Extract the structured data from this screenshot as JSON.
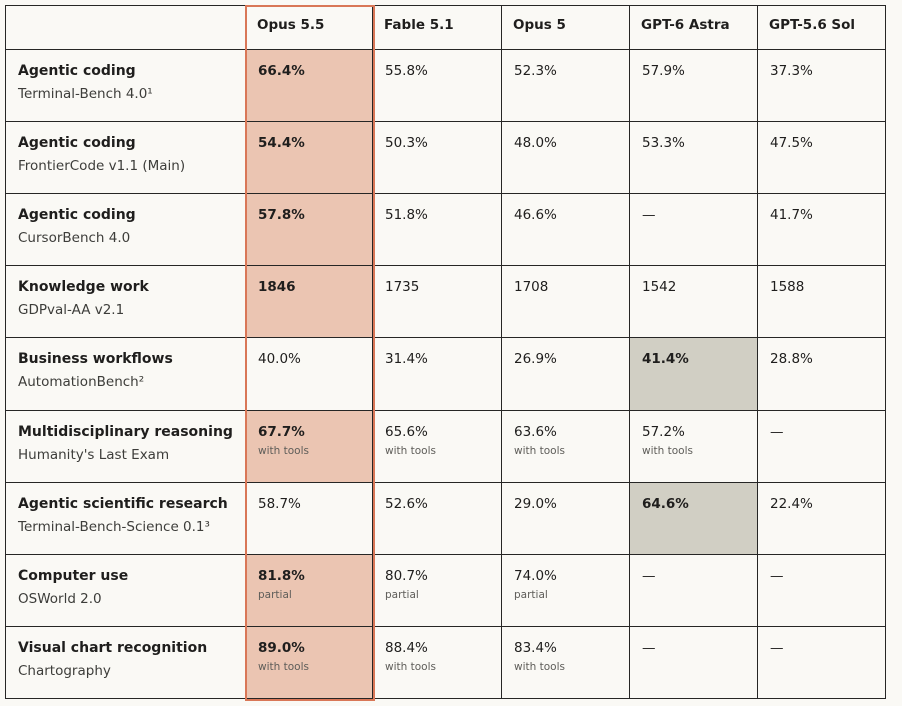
{
  "chart_data": {
    "type": "table",
    "columns": [
      "",
      "Opus 5.5",
      "Fable 5.1",
      "Opus 5",
      "GPT-6 Astra",
      "GPT-5.6 Sol"
    ],
    "rows": [
      {
        "title": "Agentic coding",
        "benchmark": "Terminal-Bench 4.0¹",
        "cells": [
          {
            "value": "66.4%",
            "note": "",
            "bold": true,
            "highlight": "opus"
          },
          {
            "value": "55.8%",
            "note": "",
            "bold": false,
            "highlight": ""
          },
          {
            "value": "52.3%",
            "note": "",
            "bold": false,
            "highlight": ""
          },
          {
            "value": "57.9%",
            "note": "",
            "bold": false,
            "highlight": ""
          },
          {
            "value": "37.3%",
            "note": "",
            "bold": false,
            "highlight": ""
          }
        ]
      },
      {
        "title": "Agentic coding",
        "benchmark": "FrontierCode v1.1 (Main)",
        "cells": [
          {
            "value": "54.4%",
            "note": "",
            "bold": true,
            "highlight": "opus"
          },
          {
            "value": "50.3%",
            "note": "",
            "bold": false,
            "highlight": ""
          },
          {
            "value": "48.0%",
            "note": "",
            "bold": false,
            "highlight": ""
          },
          {
            "value": "53.3%",
            "note": "",
            "bold": false,
            "highlight": ""
          },
          {
            "value": "47.5%",
            "note": "",
            "bold": false,
            "highlight": ""
          }
        ]
      },
      {
        "title": "Agentic coding",
        "benchmark": "CursorBench 4.0",
        "cells": [
          {
            "value": "57.8%",
            "note": "",
            "bold": true,
            "highlight": "opus"
          },
          {
            "value": "51.8%",
            "note": "",
            "bold": false,
            "highlight": ""
          },
          {
            "value": "46.6%",
            "note": "",
            "bold": false,
            "highlight": ""
          },
          {
            "value": "—",
            "note": "",
            "bold": false,
            "highlight": ""
          },
          {
            "value": "41.7%",
            "note": "",
            "bold": false,
            "highlight": ""
          }
        ]
      },
      {
        "title": "Knowledge work",
        "benchmark": "GDPval-AA v2.1",
        "cells": [
          {
            "value": "1846",
            "note": "",
            "bold": true,
            "highlight": "opus"
          },
          {
            "value": "1735",
            "note": "",
            "bold": false,
            "highlight": ""
          },
          {
            "value": "1708",
            "note": "",
            "bold": false,
            "highlight": ""
          },
          {
            "value": "1542",
            "note": "",
            "bold": false,
            "highlight": ""
          },
          {
            "value": "1588",
            "note": "",
            "bold": false,
            "highlight": ""
          }
        ]
      },
      {
        "title": "Business workflows",
        "benchmark": "AutomationBench²",
        "cells": [
          {
            "value": "40.0%",
            "note": "",
            "bold": false,
            "highlight": ""
          },
          {
            "value": "31.4%",
            "note": "",
            "bold": false,
            "highlight": ""
          },
          {
            "value": "26.9%",
            "note": "",
            "bold": false,
            "highlight": ""
          },
          {
            "value": "41.4%",
            "note": "",
            "bold": true,
            "highlight": "gray"
          },
          {
            "value": "28.8%",
            "note": "",
            "bold": false,
            "highlight": ""
          }
        ]
      },
      {
        "title": "Multidisciplinary reasoning",
        "benchmark": "Humanity's Last Exam",
        "cells": [
          {
            "value": "67.7%",
            "note": "with tools",
            "bold": true,
            "highlight": "opus"
          },
          {
            "value": "65.6%",
            "note": "with tools",
            "bold": false,
            "highlight": ""
          },
          {
            "value": "63.6%",
            "note": "with tools",
            "bold": false,
            "highlight": ""
          },
          {
            "value": "57.2%",
            "note": "with tools",
            "bold": false,
            "highlight": ""
          },
          {
            "value": "—",
            "note": "",
            "bold": false,
            "highlight": ""
          }
        ]
      },
      {
        "title": "Agentic scientific research",
        "benchmark": "Terminal-Bench-Science 0.1³",
        "cells": [
          {
            "value": "58.7%",
            "note": "",
            "bold": false,
            "highlight": ""
          },
          {
            "value": "52.6%",
            "note": "",
            "bold": false,
            "highlight": ""
          },
          {
            "value": "29.0%",
            "note": "",
            "bold": false,
            "highlight": ""
          },
          {
            "value": "64.6%",
            "note": "",
            "bold": true,
            "highlight": "gray"
          },
          {
            "value": "22.4%",
            "note": "",
            "bold": false,
            "highlight": ""
          }
        ]
      },
      {
        "title": "Computer use",
        "benchmark": "OSWorld 2.0",
        "cells": [
          {
            "value": "81.8%",
            "note": "partial",
            "bold": true,
            "highlight": "opus"
          },
          {
            "value": "80.7%",
            "note": "partial",
            "bold": false,
            "highlight": ""
          },
          {
            "value": "74.0%",
            "note": "partial",
            "bold": false,
            "highlight": ""
          },
          {
            "value": "—",
            "note": "",
            "bold": false,
            "highlight": ""
          },
          {
            "value": "—",
            "note": "",
            "bold": false,
            "highlight": ""
          }
        ]
      },
      {
        "title": "Visual chart recognition",
        "benchmark": "Chartography",
        "cells": [
          {
            "value": "89.0%",
            "note": "with tools",
            "bold": true,
            "highlight": "opus"
          },
          {
            "value": "88.4%",
            "note": "with tools",
            "bold": false,
            "highlight": ""
          },
          {
            "value": "83.4%",
            "note": "with tools",
            "bold": false,
            "highlight": ""
          },
          {
            "value": "—",
            "note": "",
            "bold": false,
            "highlight": ""
          },
          {
            "value": "—",
            "note": "",
            "bold": false,
            "highlight": ""
          }
        ]
      }
    ],
    "colors": {
      "opus_highlight": "#ebc5b2",
      "opus_border": "#d97757",
      "best_other_highlight": "#d1cfc4",
      "background": "#faf9f5",
      "grid": "#262625"
    }
  }
}
